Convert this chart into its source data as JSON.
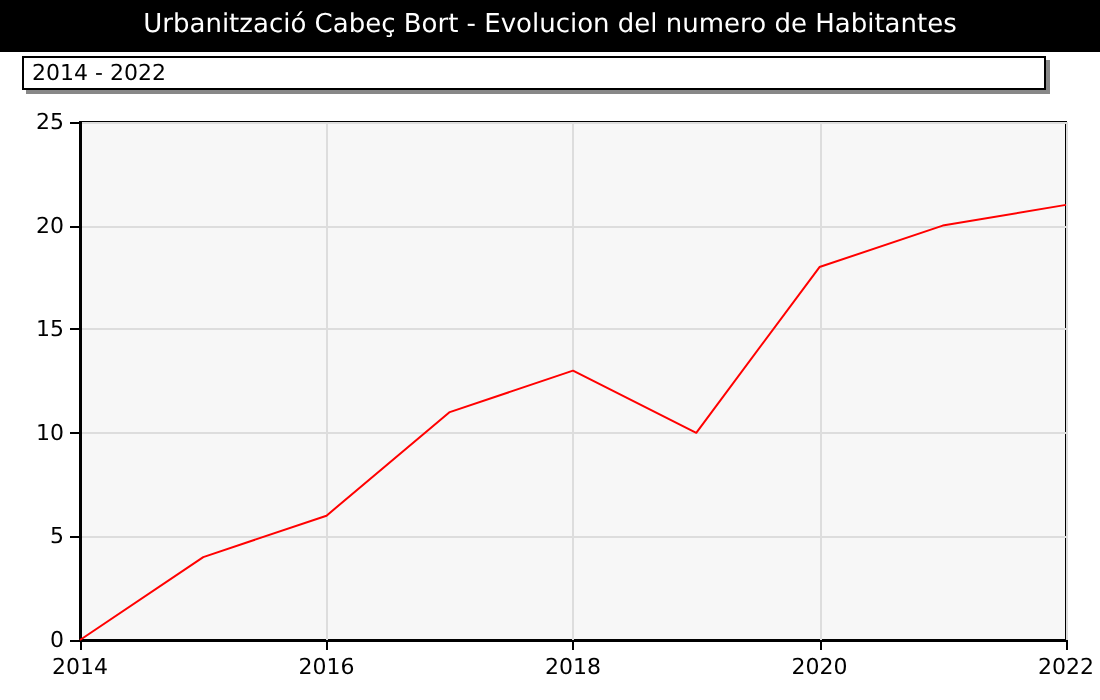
{
  "chart_data": {
    "type": "line",
    "title": "Urbanització Cabeç Bort - Evolucion del numero de Habitantes",
    "annotations": [
      "2014 - 2022"
    ],
    "x": [
      2014,
      2015,
      2016,
      2017,
      2018,
      2019,
      2020,
      2021,
      2022
    ],
    "series": [
      {
        "color": "#ff0000",
        "values": [
          0,
          4,
          6,
          11,
          13,
          10,
          18,
          20,
          21
        ]
      }
    ],
    "xlim": [
      2014,
      2022
    ],
    "xticks": [
      2014,
      2016,
      2018,
      2020,
      2022
    ],
    "ylim": [
      0,
      25
    ],
    "yticks": [
      0,
      5,
      10,
      15,
      20,
      25
    ],
    "grid": true,
    "marker": "none",
    "line_style": "solid"
  }
}
